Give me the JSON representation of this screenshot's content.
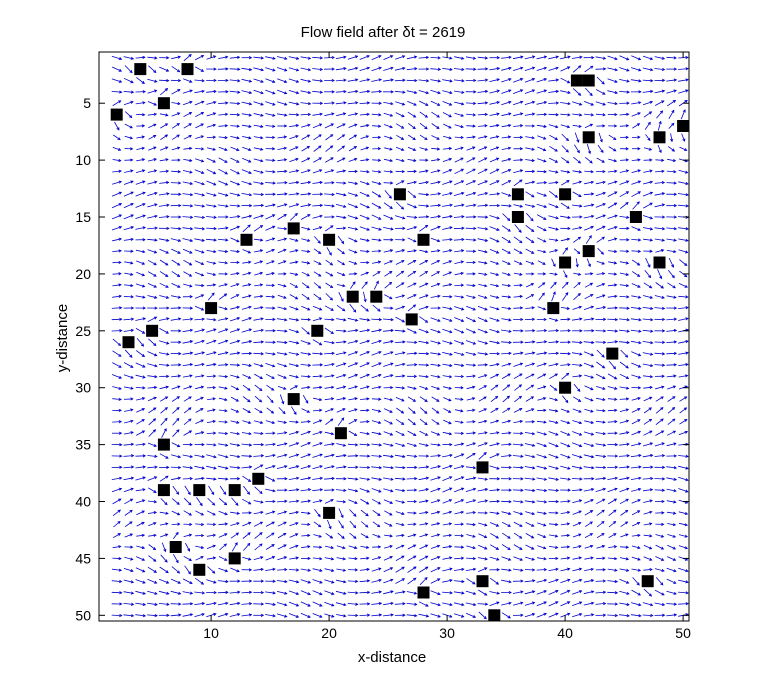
{
  "chart_data": {
    "type": "quiver",
    "title": "Flow field after  δt = 2619",
    "xlabel": "x-distance",
    "ylabel": "y-distance",
    "xlim": [
      0.5,
      50.5
    ],
    "ylim": [
      0.5,
      50.5
    ],
    "y_direction": "reverse",
    "xticks": [
      10,
      20,
      30,
      40,
      50
    ],
    "yticks": [
      5,
      10,
      15,
      20,
      25,
      30,
      35,
      40,
      45,
      50
    ],
    "grid": false,
    "legend": "none",
    "arrow_color": "#0000cc",
    "obstacle_color": "#000000",
    "field_grid": {
      "x_start": 2,
      "x_end": 50,
      "y_start": 1,
      "y_end": 50,
      "step": 1
    },
    "obstacles": [
      {
        "x": 4,
        "y": 2
      },
      {
        "x": 8,
        "y": 2
      },
      {
        "x": 6,
        "y": 5
      },
      {
        "x": 2,
        "y": 6
      },
      {
        "x": 41,
        "y": 3
      },
      {
        "x": 42,
        "y": 3
      },
      {
        "x": 50,
        "y": 7
      },
      {
        "x": 42,
        "y": 8
      },
      {
        "x": 48,
        "y": 8
      },
      {
        "x": 26,
        "y": 13
      },
      {
        "x": 36,
        "y": 13
      },
      {
        "x": 40,
        "y": 13
      },
      {
        "x": 36,
        "y": 15
      },
      {
        "x": 46,
        "y": 15
      },
      {
        "x": 17,
        "y": 16
      },
      {
        "x": 13,
        "y": 17
      },
      {
        "x": 20,
        "y": 17
      },
      {
        "x": 28,
        "y": 17
      },
      {
        "x": 42,
        "y": 18
      },
      {
        "x": 40,
        "y": 19
      },
      {
        "x": 48,
        "y": 19
      },
      {
        "x": 22,
        "y": 22
      },
      {
        "x": 24,
        "y": 22
      },
      {
        "x": 10,
        "y": 23
      },
      {
        "x": 39,
        "y": 23
      },
      {
        "x": 27,
        "y": 24
      },
      {
        "x": 5,
        "y": 25
      },
      {
        "x": 19,
        "y": 25
      },
      {
        "x": 3,
        "y": 26
      },
      {
        "x": 44,
        "y": 27
      },
      {
        "x": 40,
        "y": 30
      },
      {
        "x": 17,
        "y": 31
      },
      {
        "x": 21,
        "y": 34
      },
      {
        "x": 6,
        "y": 35
      },
      {
        "x": 33,
        "y": 37
      },
      {
        "x": 14,
        "y": 38
      },
      {
        "x": 6,
        "y": 39
      },
      {
        "x": 9,
        "y": 39
      },
      {
        "x": 12,
        "y": 39
      },
      {
        "x": 20,
        "y": 41
      },
      {
        "x": 7,
        "y": 44
      },
      {
        "x": 12,
        "y": 45
      },
      {
        "x": 9,
        "y": 46
      },
      {
        "x": 33,
        "y": 47
      },
      {
        "x": 47,
        "y": 47
      },
      {
        "x": 28,
        "y": 48
      },
      {
        "x": 34,
        "y": 50
      }
    ]
  }
}
